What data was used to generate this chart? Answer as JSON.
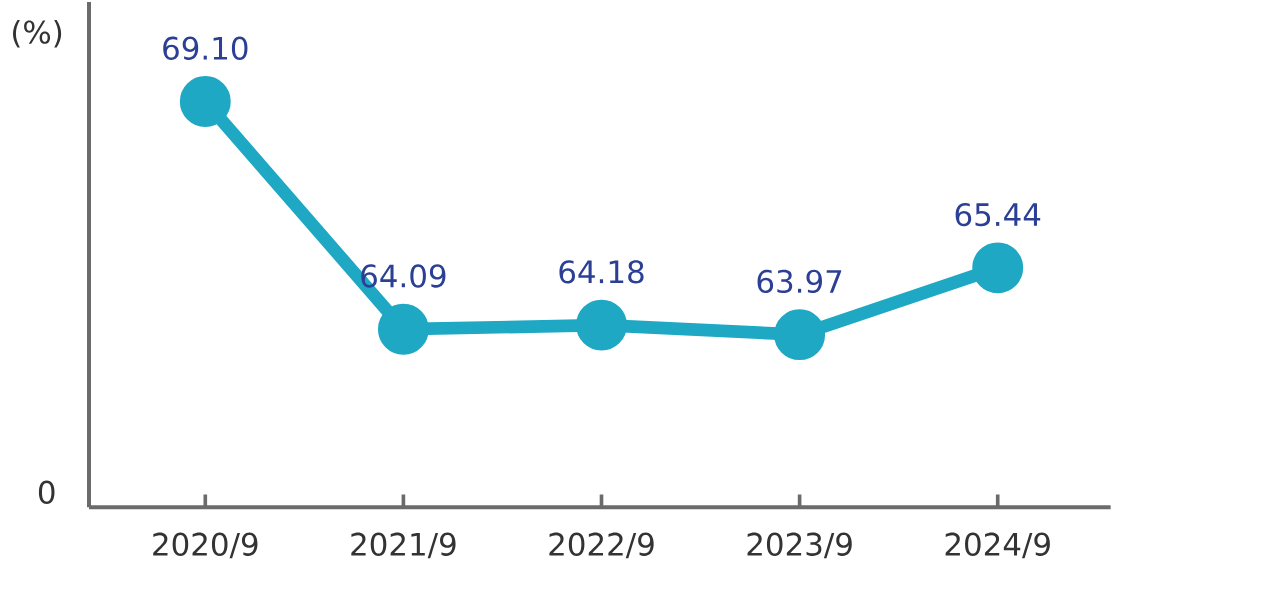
{
  "chart_data": {
    "type": "line",
    "ylabel": "(%)",
    "categories": [
      "2020/9",
      "2021/9",
      "2022/9",
      "2023/9",
      "2024/9"
    ],
    "values": [
      69.1,
      64.09,
      64.18,
      63.97,
      65.44
    ],
    "value_labels": [
      "69.10",
      "64.09",
      "64.18",
      "63.97",
      "65.44"
    ],
    "color": "#1fa8c4",
    "marker": "circle",
    "line_style": "solid",
    "ylim": [
      60.17,
      71.29
    ],
    "tick_labels": "x",
    "annotations": [
      "0"
    ]
  }
}
